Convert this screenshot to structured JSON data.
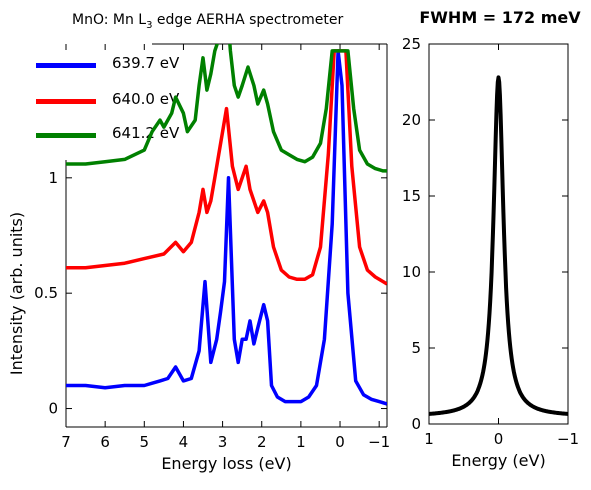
{
  "chart_data": [
    {
      "type": "line",
      "title": {
        "prefix": "MnO: Mn L",
        "sub": "3",
        "suffix": " edge AERHA spectrometer"
      },
      "xlabel": "Energy loss (eV)",
      "ylabel": "Intensity (arb. units)",
      "xlim": [
        7,
        -1.2
      ],
      "ylim": [
        -0.08,
        1.58
      ],
      "x_reversed": true,
      "x_ticks": [
        7,
        6,
        5,
        4,
        3,
        2,
        1,
        0,
        -1
      ],
      "x_tick_labels": [
        "7",
        "6",
        "5",
        "4",
        "3",
        "2",
        "1",
        "0",
        "−1"
      ],
      "y_ticks": [
        0,
        0.5,
        1
      ],
      "y_tick_labels": [
        "0",
        "0.5",
        "1"
      ],
      "legend_placement": "top-left",
      "series": [
        {
          "name": "639.7 eV",
          "color": "#0000ff",
          "points": [
            [
              7,
              0.1
            ],
            [
              6.5,
              0.1
            ],
            [
              6,
              0.09
            ],
            [
              5.5,
              0.1
            ],
            [
              5,
              0.1
            ],
            [
              4.6,
              0.12
            ],
            [
              4.4,
              0.13
            ],
            [
              4.2,
              0.18
            ],
            [
              4.0,
              0.12
            ],
            [
              3.8,
              0.13
            ],
            [
              3.6,
              0.25
            ],
            [
              3.45,
              0.55
            ],
            [
              3.3,
              0.2
            ],
            [
              3.15,
              0.3
            ],
            [
              3.05,
              0.42
            ],
            [
              2.95,
              0.55
            ],
            [
              2.85,
              1.0
            ],
            [
              2.7,
              0.3
            ],
            [
              2.6,
              0.2
            ],
            [
              2.5,
              0.3
            ],
            [
              2.4,
              0.3
            ],
            [
              2.3,
              0.38
            ],
            [
              2.2,
              0.28
            ],
            [
              2.1,
              0.35
            ],
            [
              1.95,
              0.45
            ],
            [
              1.85,
              0.38
            ],
            [
              1.75,
              0.1
            ],
            [
              1.6,
              0.05
            ],
            [
              1.4,
              0.03
            ],
            [
              1.2,
              0.03
            ],
            [
              1.0,
              0.03
            ],
            [
              0.8,
              0.05
            ],
            [
              0.6,
              0.1
            ],
            [
              0.4,
              0.3
            ],
            [
              0.2,
              0.8
            ],
            [
              0.05,
              1.55
            ],
            [
              -0.05,
              1.4
            ],
            [
              -0.2,
              0.5
            ],
            [
              -0.4,
              0.12
            ],
            [
              -0.6,
              0.06
            ],
            [
              -0.8,
              0.04
            ],
            [
              -1.0,
              0.03
            ],
            [
              -1.2,
              0.02
            ]
          ]
        },
        {
          "name": "640.0 eV",
          "color": "#ff0000",
          "points": [
            [
              7,
              0.61
            ],
            [
              6.5,
              0.61
            ],
            [
              6,
              0.62
            ],
            [
              5.5,
              0.63
            ],
            [
              5,
              0.65
            ],
            [
              4.5,
              0.67
            ],
            [
              4.2,
              0.72
            ],
            [
              4.0,
              0.68
            ],
            [
              3.8,
              0.72
            ],
            [
              3.6,
              0.85
            ],
            [
              3.5,
              0.95
            ],
            [
              3.4,
              0.85
            ],
            [
              3.3,
              0.9
            ],
            [
              3.2,
              1.0
            ],
            [
              3.1,
              1.1
            ],
            [
              3.0,
              1.2
            ],
            [
              2.9,
              1.3
            ],
            [
              2.75,
              1.05
            ],
            [
              2.6,
              0.95
            ],
            [
              2.5,
              1.0
            ],
            [
              2.4,
              1.05
            ],
            [
              2.3,
              0.95
            ],
            [
              2.2,
              0.9
            ],
            [
              2.1,
              0.85
            ],
            [
              1.95,
              0.9
            ],
            [
              1.85,
              0.85
            ],
            [
              1.7,
              0.7
            ],
            [
              1.5,
              0.6
            ],
            [
              1.3,
              0.57
            ],
            [
              1.1,
              0.56
            ],
            [
              0.9,
              0.56
            ],
            [
              0.7,
              0.58
            ],
            [
              0.5,
              0.7
            ],
            [
              0.3,
              1.1
            ],
            [
              0.15,
              1.55
            ],
            [
              -0.15,
              1.55
            ],
            [
              -0.3,
              1.05
            ],
            [
              -0.5,
              0.7
            ],
            [
              -0.7,
              0.6
            ],
            [
              -0.9,
              0.57
            ],
            [
              -1.1,
              0.55
            ],
            [
              -1.2,
              0.54
            ]
          ]
        },
        {
          "name": "641.2 eV",
          "color": "#008000",
          "points": [
            [
              7,
              1.06
            ],
            [
              6.5,
              1.06
            ],
            [
              6,
              1.07
            ],
            [
              5.5,
              1.08
            ],
            [
              5,
              1.12
            ],
            [
              4.8,
              1.2
            ],
            [
              4.6,
              1.25
            ],
            [
              4.5,
              1.22
            ],
            [
              4.3,
              1.28
            ],
            [
              4.2,
              1.35
            ],
            [
              4.0,
              1.28
            ],
            [
              3.9,
              1.2
            ],
            [
              3.7,
              1.25
            ],
            [
              3.6,
              1.4
            ],
            [
              3.5,
              1.52
            ],
            [
              3.4,
              1.38
            ],
            [
              3.3,
              1.45
            ],
            [
              3.2,
              1.55
            ],
            [
              3.1,
              1.6
            ],
            [
              3.0,
              1.68
            ],
            [
              2.9,
              1.78
            ],
            [
              2.8,
              1.55
            ],
            [
              2.7,
              1.4
            ],
            [
              2.6,
              1.35
            ],
            [
              2.5,
              1.4
            ],
            [
              2.35,
              1.48
            ],
            [
              2.2,
              1.4
            ],
            [
              2.1,
              1.32
            ],
            [
              1.95,
              1.38
            ],
            [
              1.85,
              1.32
            ],
            [
              1.7,
              1.2
            ],
            [
              1.5,
              1.12
            ],
            [
              1.3,
              1.1
            ],
            [
              1.1,
              1.08
            ],
            [
              0.9,
              1.07
            ],
            [
              0.7,
              1.09
            ],
            [
              0.5,
              1.15
            ],
            [
              0.35,
              1.3
            ],
            [
              0.2,
              1.55
            ],
            [
              -0.2,
              1.55
            ],
            [
              -0.35,
              1.3
            ],
            [
              -0.5,
              1.12
            ],
            [
              -0.7,
              1.06
            ],
            [
              -0.9,
              1.04
            ],
            [
              -1.1,
              1.03
            ],
            [
              -1.2,
              1.03
            ]
          ]
        }
      ]
    },
    {
      "type": "line",
      "title": "FWHM = 172 meV",
      "xlabel": "Energy (eV)",
      "ylabel": "",
      "xlim": [
        1,
        -1
      ],
      "ylim": [
        0,
        25
      ],
      "x_reversed": true,
      "x_ticks": [
        1,
        0,
        -1
      ],
      "x_tick_labels": [
        "1",
        "0",
        "−1"
      ],
      "y_ticks": [
        0,
        5,
        10,
        15,
        20,
        25
      ],
      "y_tick_labels": [
        "0",
        "5",
        "10",
        "15",
        "20",
        "25"
      ],
      "series": [
        {
          "color": "#000000",
          "fwhm_eV": 0.172,
          "peak": 22.8,
          "baseline": 0.5,
          "center": 0
        }
      ]
    }
  ]
}
